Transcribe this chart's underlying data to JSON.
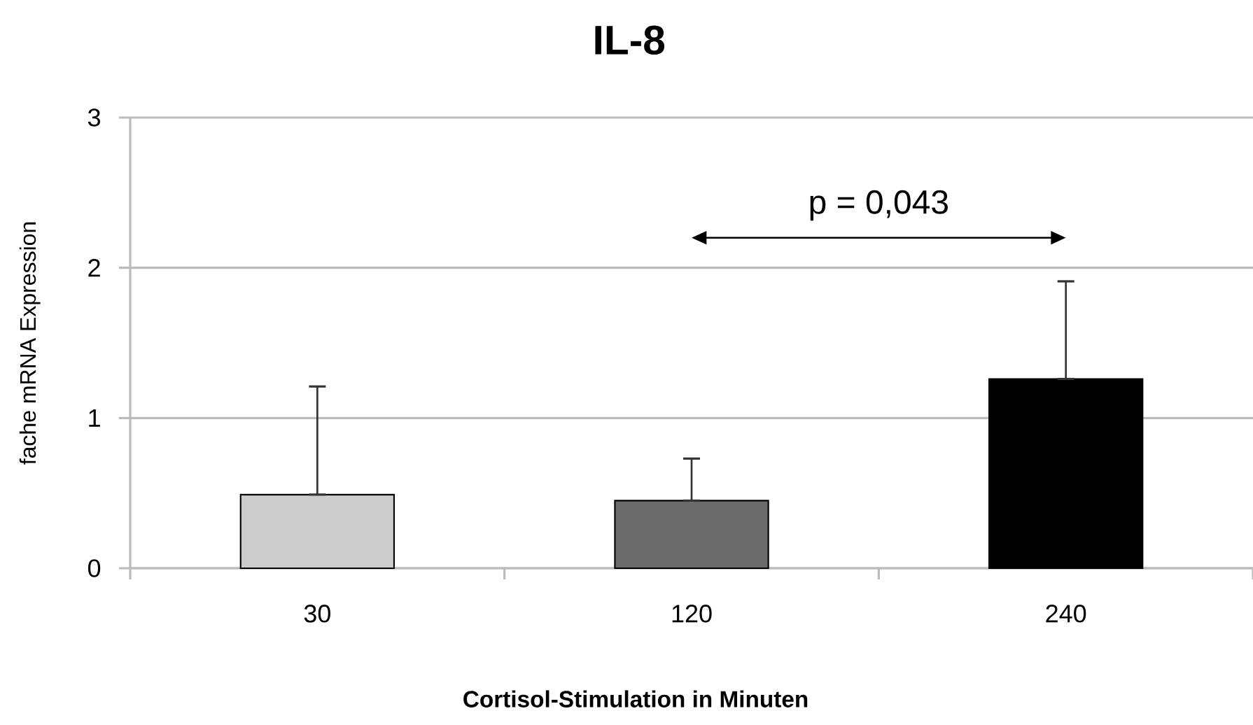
{
  "chart_data": {
    "type": "bar",
    "title": "IL-8",
    "xlabel": "Cortisol-Stimulation in Minuten",
    "ylabel": "fache mRNA  Expression",
    "categories": [
      "30",
      "120",
      "240"
    ],
    "values": [
      0.49,
      0.45,
      1.26
    ],
    "colors": [
      "#cccccc",
      "#6b6b6b",
      "#000000"
    ],
    "errors": [
      [
        0.49,
        1.21
      ],
      [
        0.45,
        0.73
      ],
      [
        1.26,
        1.91
      ]
    ],
    "ylim": [
      0,
      3
    ],
    "yticks": [
      0,
      1,
      2,
      3
    ],
    "grid": "y",
    "annotations": [
      "p = 0,043"
    ]
  }
}
